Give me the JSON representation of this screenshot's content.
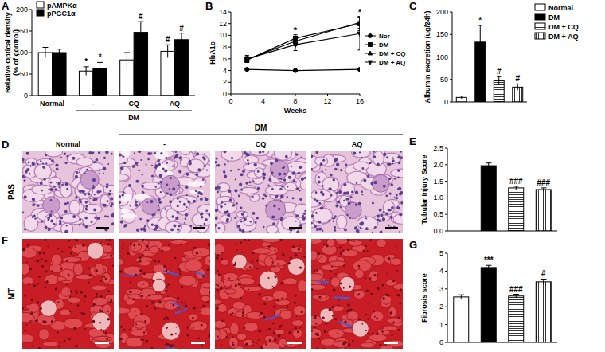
{
  "chart_data": [
    {
      "panel_label": "A",
      "type": "bar",
      "categories": [
        "Normal",
        "-",
        "CQ",
        "AQ"
      ],
      "groups": [
        {
          "label": "DM",
          "from": 1,
          "to": 3
        }
      ],
      "y_label": [
        "Relative Optical density",
        "(% of control)"
      ],
      "series": [
        {
          "name": "pAMPKα",
          "color": "#ffffff",
          "values": [
            100,
            57,
            83,
            103
          ],
          "errors": [
            12,
            10,
            17,
            15
          ],
          "significance": [
            null,
            "*",
            null,
            "#"
          ]
        },
        {
          "name": "pPGC1α",
          "color": "#000000",
          "values": [
            100,
            62,
            147,
            130
          ],
          "errors": [
            8,
            15,
            25,
            15
          ],
          "significance": [
            null,
            "*",
            "#",
            "#"
          ]
        }
      ],
      "ylim": [
        0,
        200
      ],
      "yticks": [
        0,
        50,
        100,
        150,
        200
      ],
      "legend": "upper left"
    },
    {
      "panel_label": "B",
      "type": "line",
      "x": [
        2,
        8,
        16
      ],
      "xlim": [
        0,
        16
      ],
      "xticks": [
        0,
        4,
        8,
        12,
        16
      ],
      "ylim": [
        0,
        14
      ],
      "yticks": [
        0,
        2,
        4,
        6,
        8,
        10,
        12,
        14
      ],
      "x_label": "Weeks",
      "y_label": "HbA1c",
      "legend": "right",
      "series": [
        {
          "name": "Nor",
          "color": "#000000",
          "marker": "circle",
          "values": [
            4.2,
            4.0,
            4.2
          ],
          "errors": [
            0.1,
            0.1,
            0.1
          ]
        },
        {
          "name": "DM",
          "color": "#000000",
          "marker": "square",
          "values": [
            5.8,
            9.5,
            12.0
          ],
          "errors": [
            0.4,
            0.6,
            1.2
          ]
        },
        {
          "name": "DM + CQ",
          "color": "#000000",
          "marker": "triangle",
          "values": [
            5.9,
            9.0,
            12.2
          ],
          "errors": [
            0.5,
            0.8,
            1.0
          ]
        },
        {
          "name": "DM + AQ",
          "color": "#000000",
          "marker": "triangle-down",
          "values": [
            6.0,
            8.4,
            10.3
          ],
          "errors": [
            0.6,
            1.0,
            2.8
          ]
        }
      ],
      "annotations": [
        {
          "x": 8,
          "text": "*"
        },
        {
          "x": 16,
          "text": "*"
        }
      ]
    },
    {
      "panel_label": "C",
      "type": "bar",
      "categories": [
        "Normal",
        "DM",
        "DM + CQ",
        "DM + AQ"
      ],
      "colors": [
        "#ffffff",
        "#000000",
        "#ffffff",
        "#ffffff"
      ],
      "values": [
        10,
        133,
        47,
        33
      ],
      "errors": [
        3,
        37,
        9,
        7
      ],
      "significance": [
        null,
        "*",
        "#",
        "#"
      ],
      "y_label": "Albumin excretion (ug/24h)",
      "ylim": [
        0,
        200
      ],
      "yticks": [
        0,
        50,
        100,
        150,
        200
      ],
      "legend": "upper right",
      "tick_labels": "y"
    },
    {
      "panel_label": "E",
      "type": "bar",
      "categories": [
        null,
        null,
        null,
        null
      ],
      "colors": [
        "#ffffff",
        "#000000",
        "#ffffff",
        "#ffffff"
      ],
      "values": [
        0,
        1.97,
        1.3,
        1.25
      ],
      "errors": [
        null,
        0.08,
        0.05,
        0.05
      ],
      "significance": [
        null,
        null,
        "###",
        "###"
      ],
      "y_label": "Tubular Injury Score",
      "ylim": [
        0,
        2.5
      ],
      "yticks": [
        {
          "value": 0,
          "label": "0.0"
        },
        0.5,
        {
          "value": 1,
          "label": "1.0"
        },
        1.5,
        {
          "value": 2,
          "label": "2.0"
        },
        2.5
      ],
      "tick_labels": "y"
    },
    {
      "panel_label": "G",
      "type": "bar",
      "categories": [
        null,
        null,
        null,
        null
      ],
      "colors": [
        "#ffffff",
        "#000000",
        "#ffffff",
        "#ffffff"
      ],
      "values": [
        2.55,
        4.2,
        2.6,
        3.4
      ],
      "errors": [
        0.12,
        0.12,
        0.1,
        0.15
      ],
      "significance": [
        null,
        "***",
        "###",
        "#"
      ],
      "y_label": "Fibrosis score",
      "ylim": [
        0,
        5
      ],
      "yticks": [
        0,
        1,
        2,
        3,
        4,
        5
      ],
      "tick_labels": "y"
    }
  ],
  "micrographs": {
    "group_label": "DM",
    "columns": [
      "Normal",
      "-",
      "CQ",
      "AQ"
    ],
    "rows": [
      {
        "panel_label": "D",
        "label": "PAS"
      },
      {
        "panel_label": "F",
        "label": "MT"
      }
    ]
  }
}
